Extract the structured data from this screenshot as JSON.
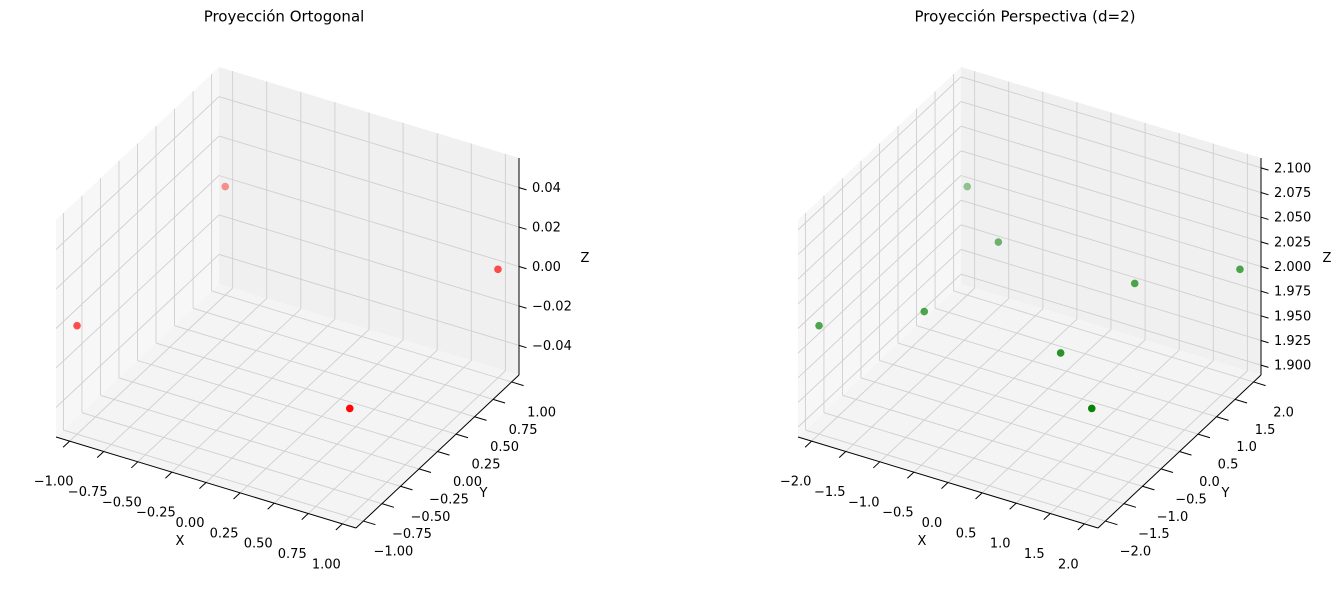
{
  "chart_data": [
    {
      "type": "scatter3d",
      "title": "Proyección Ortogonal",
      "xlabel": "X",
      "ylabel": "Y",
      "zlabel": "Z",
      "color": "#ff0000",
      "x": [
        -1,
        1,
        1,
        -1
      ],
      "y": [
        -1,
        -1,
        1,
        1
      ],
      "z": [
        0,
        0,
        0,
        0
      ],
      "xlim": [
        -1.1,
        1.1
      ],
      "ylim": [
        -1.1,
        1.1
      ],
      "zlim": [
        -0.055,
        0.055
      ],
      "xticks": [
        {
          "value": -1,
          "label": "−1.00"
        },
        {
          "value": -0.75,
          "label": "−0.75"
        },
        {
          "value": -0.5,
          "label": "−0.50"
        },
        {
          "value": -0.25,
          "label": "−0.25"
        },
        {
          "value": 0,
          "label": "0.00"
        },
        0.25,
        {
          "value": 0.5,
          "label": "0.50"
        },
        0.75,
        {
          "value": 1,
          "label": "1.00"
        }
      ],
      "yticks": [
        {
          "value": -1,
          "label": "−1.00"
        },
        {
          "value": -0.75,
          "label": "−0.75"
        },
        {
          "value": -0.5,
          "label": "−0.50"
        },
        {
          "value": -0.25,
          "label": "−0.25"
        },
        {
          "value": 0,
          "label": "0.00"
        },
        0.25,
        {
          "value": 0.5,
          "label": "0.50"
        },
        0.75,
        {
          "value": 1,
          "label": "1.00"
        }
      ],
      "zticks": [
        {
          "value": -0.04,
          "label": "−0.04"
        },
        {
          "value": -0.02,
          "label": "−0.02"
        },
        {
          "value": 0,
          "label": "0.00"
        },
        0.02,
        0.04
      ]
    },
    {
      "type": "scatter3d",
      "title": "Proyección Perspectiva (d=2)",
      "xlabel": "X",
      "ylabel": "Y",
      "zlabel": "Z",
      "color": "#008000",
      "x": [
        -2,
        2,
        2,
        -2,
        -1,
        1,
        1,
        -1
      ],
      "y": [
        -2,
        -2,
        2,
        2,
        -1,
        -1,
        1,
        1
      ],
      "z": [
        2,
        2,
        2,
        2,
        2,
        2,
        2,
        2
      ],
      "xlim": [
        -2.2,
        2.2
      ],
      "ylim": [
        -2.2,
        2.2
      ],
      "zlim": [
        1.89,
        2.11
      ],
      "xticks": [
        {
          "value": -2,
          "label": "−2.0"
        },
        {
          "value": -1.5,
          "label": "−1.5"
        },
        {
          "value": -1,
          "label": "−1.0"
        },
        {
          "value": -0.5,
          "label": "−0.5"
        },
        {
          "value": 0,
          "label": "0.0"
        },
        0.5,
        {
          "value": 1,
          "label": "1.0"
        },
        1.5,
        {
          "value": 2,
          "label": "2.0"
        }
      ],
      "yticks": [
        {
          "value": -2,
          "label": "−2.0"
        },
        {
          "value": -1.5,
          "label": "−1.5"
        },
        {
          "value": -1,
          "label": "−1.0"
        },
        {
          "value": -0.5,
          "label": "−0.5"
        },
        {
          "value": 0,
          "label": "0.0"
        },
        0.5,
        {
          "value": 1,
          "label": "1.0"
        },
        1.5,
        {
          "value": 2,
          "label": "2.0"
        }
      ],
      "zticks": [
        {
          "value": 1.9,
          "label": "1.900"
        },
        1.925,
        {
          "value": 1.95,
          "label": "1.950"
        },
        1.975,
        {
          "value": 2,
          "label": "2.000"
        },
        2.025,
        {
          "value": 2.05,
          "label": "2.050"
        },
        2.075,
        {
          "value": 2.1,
          "label": "2.100"
        }
      ]
    }
  ]
}
